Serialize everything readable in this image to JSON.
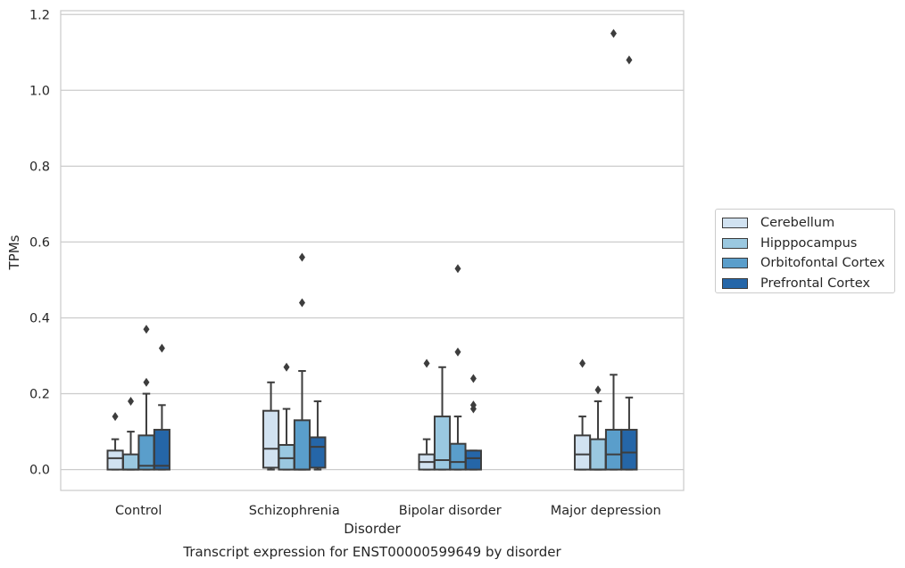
{
  "chart_data": {
    "type": "box",
    "xlabel": "Disorder",
    "ylabel": "TPMs",
    "caption": "Transcript expression for ENST00000599649 by disorder",
    "categories": [
      "Control",
      "Schizophrenia",
      "Bipolar disorder",
      "Major depression"
    ],
    "ylim": [
      -0.055,
      1.21
    ],
    "yticks": [
      "0.0",
      "0.2",
      "0.4",
      "0.6",
      "0.8",
      "1.0",
      "1.2"
    ],
    "ytick_values": [
      0.0,
      0.2,
      0.4,
      0.6,
      0.8,
      1.0,
      1.2
    ],
    "grid": "horizontal",
    "legend_position": "right",
    "series": [
      {
        "name": "Cerebellum",
        "color": "#d1e2f1",
        "boxes": [
          {
            "whislo": 0.0,
            "q1": 0.0,
            "med": 0.03,
            "q3": 0.05,
            "whishi": 0.08,
            "fliers": [
              0.14
            ]
          },
          {
            "whislo": 0.0,
            "q1": 0.005,
            "med": 0.055,
            "q3": 0.155,
            "whishi": 0.23,
            "fliers": []
          },
          {
            "whislo": 0.0,
            "q1": 0.0,
            "med": 0.02,
            "q3": 0.04,
            "whishi": 0.08,
            "fliers": [
              0.28
            ]
          },
          {
            "whislo": 0.0,
            "q1": 0.0,
            "med": 0.04,
            "q3": 0.09,
            "whishi": 0.14,
            "fliers": [
              0.28
            ]
          }
        ]
      },
      {
        "name": "Hipppocampus",
        "color": "#9ac8e0",
        "boxes": [
          {
            "whislo": 0.0,
            "q1": 0.0,
            "med": 0.0,
            "q3": 0.04,
            "whishi": 0.1,
            "fliers": [
              0.18
            ]
          },
          {
            "whislo": 0.0,
            "q1": 0.0,
            "med": 0.03,
            "q3": 0.065,
            "whishi": 0.16,
            "fliers": [
              0.27
            ]
          },
          {
            "whislo": 0.0,
            "q1": 0.0,
            "med": 0.025,
            "q3": 0.14,
            "whishi": 0.27,
            "fliers": []
          },
          {
            "whislo": 0.0,
            "q1": 0.0,
            "med": 0.0,
            "q3": 0.08,
            "whishi": 0.18,
            "fliers": [
              0.21
            ]
          }
        ]
      },
      {
        "name": "Orbitofontal Cortex",
        "color": "#5a9ecb",
        "boxes": [
          {
            "whislo": 0.0,
            "q1": 0.0,
            "med": 0.01,
            "q3": 0.09,
            "whishi": 0.2,
            "fliers": [
              0.23,
              0.37
            ]
          },
          {
            "whislo": 0.0,
            "q1": 0.0,
            "med": 0.0,
            "q3": 0.13,
            "whishi": 0.26,
            "fliers": [
              0.44,
              0.56
            ]
          },
          {
            "whislo": 0.0,
            "q1": 0.0,
            "med": 0.02,
            "q3": 0.068,
            "whishi": 0.14,
            "fliers": [
              0.31,
              0.53
            ]
          },
          {
            "whislo": 0.0,
            "q1": 0.0,
            "med": 0.04,
            "q3": 0.105,
            "whishi": 0.25,
            "fliers": [
              1.15
            ]
          }
        ]
      },
      {
        "name": "Prefrontal Cortex",
        "color": "#2566a8",
        "boxes": [
          {
            "whislo": 0.0,
            "q1": 0.0,
            "med": 0.01,
            "q3": 0.105,
            "whishi": 0.17,
            "fliers": [
              0.32
            ]
          },
          {
            "whislo": 0.0,
            "q1": 0.005,
            "med": 0.06,
            "q3": 0.085,
            "whishi": 0.18,
            "fliers": []
          },
          {
            "whislo": 0.0,
            "q1": 0.0,
            "med": 0.03,
            "q3": 0.05,
            "whishi": 0.05,
            "fliers": [
              0.16,
              0.17,
              0.24
            ]
          },
          {
            "whislo": 0.0,
            "q1": 0.0,
            "med": 0.045,
            "q3": 0.105,
            "whishi": 0.19,
            "fliers": [
              1.08
            ]
          }
        ]
      }
    ]
  }
}
